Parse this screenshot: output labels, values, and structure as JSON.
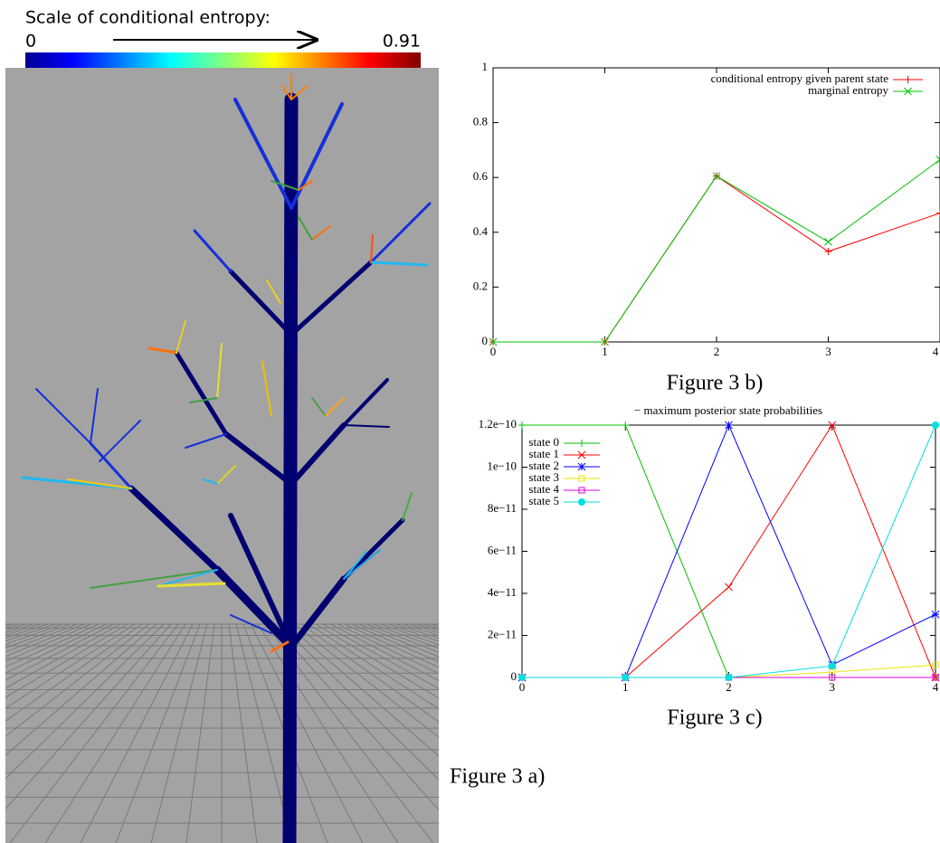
{
  "colorbar": {
    "title": "Scale of conditional entropy:",
    "min": 0,
    "max": 0.91
  },
  "captions": {
    "a": "Figure 3 a)"
  },
  "chart_data": [
    {
      "type": "line",
      "caption": "Figure 3 b)",
      "x": [
        0,
        1,
        2,
        3,
        4
      ],
      "xlim": [
        0,
        4
      ],
      "xticks": [
        0,
        1,
        2,
        3,
        4
      ],
      "ylim": [
        0,
        1
      ],
      "yticks": [
        0,
        0.2,
        0.4,
        0.6,
        0.8,
        1
      ],
      "legend": "top-right",
      "series": [
        {
          "name": "conditional entropy given parent state",
          "color": "#ff0000",
          "marker": "plus",
          "values": [
            0,
            0,
            0.605,
            0.33,
            0.47
          ]
        },
        {
          "name": "marginal entropy",
          "color": "#00c000",
          "marker": "x",
          "values": [
            0,
            0,
            0.605,
            0.365,
            0.665
          ]
        }
      ]
    },
    {
      "type": "line",
      "title": "− maximum posterior state probabilities",
      "caption": "Figure 3 c)",
      "x": [
        0,
        1,
        2,
        3,
        4
      ],
      "xlim": [
        0,
        4
      ],
      "xticks": [
        0,
        1,
        2,
        3,
        4
      ],
      "ylim": [
        0,
        1.2e-10
      ],
      "yticks": [
        0,
        {
          "value": 2e-11,
          "label": "2e−11"
        },
        {
          "value": 4e-11,
          "label": "4e−11"
        },
        {
          "value": 6e-11,
          "label": "6e−11"
        },
        {
          "value": 8e-11,
          "label": "8e−11"
        },
        {
          "value": 1e-10,
          "label": "1e−10"
        },
        {
          "value": 1.2e-10,
          "label": "1.2e−10"
        }
      ],
      "legend": "top-left",
      "series": [
        {
          "name": "state 0",
          "color": "#00c000",
          "marker": "plus",
          "values": [
            1.2e-10,
            1.2e-10,
            0,
            0,
            0
          ]
        },
        {
          "name": "state 1",
          "color": "#ff0000",
          "marker": "x",
          "values": [
            0,
            0,
            4.3e-11,
            1.2e-10,
            0
          ]
        },
        {
          "name": "state 2",
          "color": "#0000ff",
          "marker": "star",
          "values": [
            0,
            0,
            1.2e-10,
            6e-12,
            3e-11
          ]
        },
        {
          "name": "state 3",
          "color": "#e6e600",
          "marker": "square",
          "values": [
            0,
            0,
            0,
            2.5e-12,
            6e-12
          ]
        },
        {
          "name": "state 4",
          "color": "#e000e0",
          "marker": "square",
          "values": [
            0,
            0,
            0,
            0,
            0
          ]
        },
        {
          "name": "state 5",
          "color": "#00dede",
          "marker": "circle",
          "values": [
            0,
            0,
            0,
            5.5e-12,
            1.2e-10
          ]
        }
      ]
    }
  ]
}
